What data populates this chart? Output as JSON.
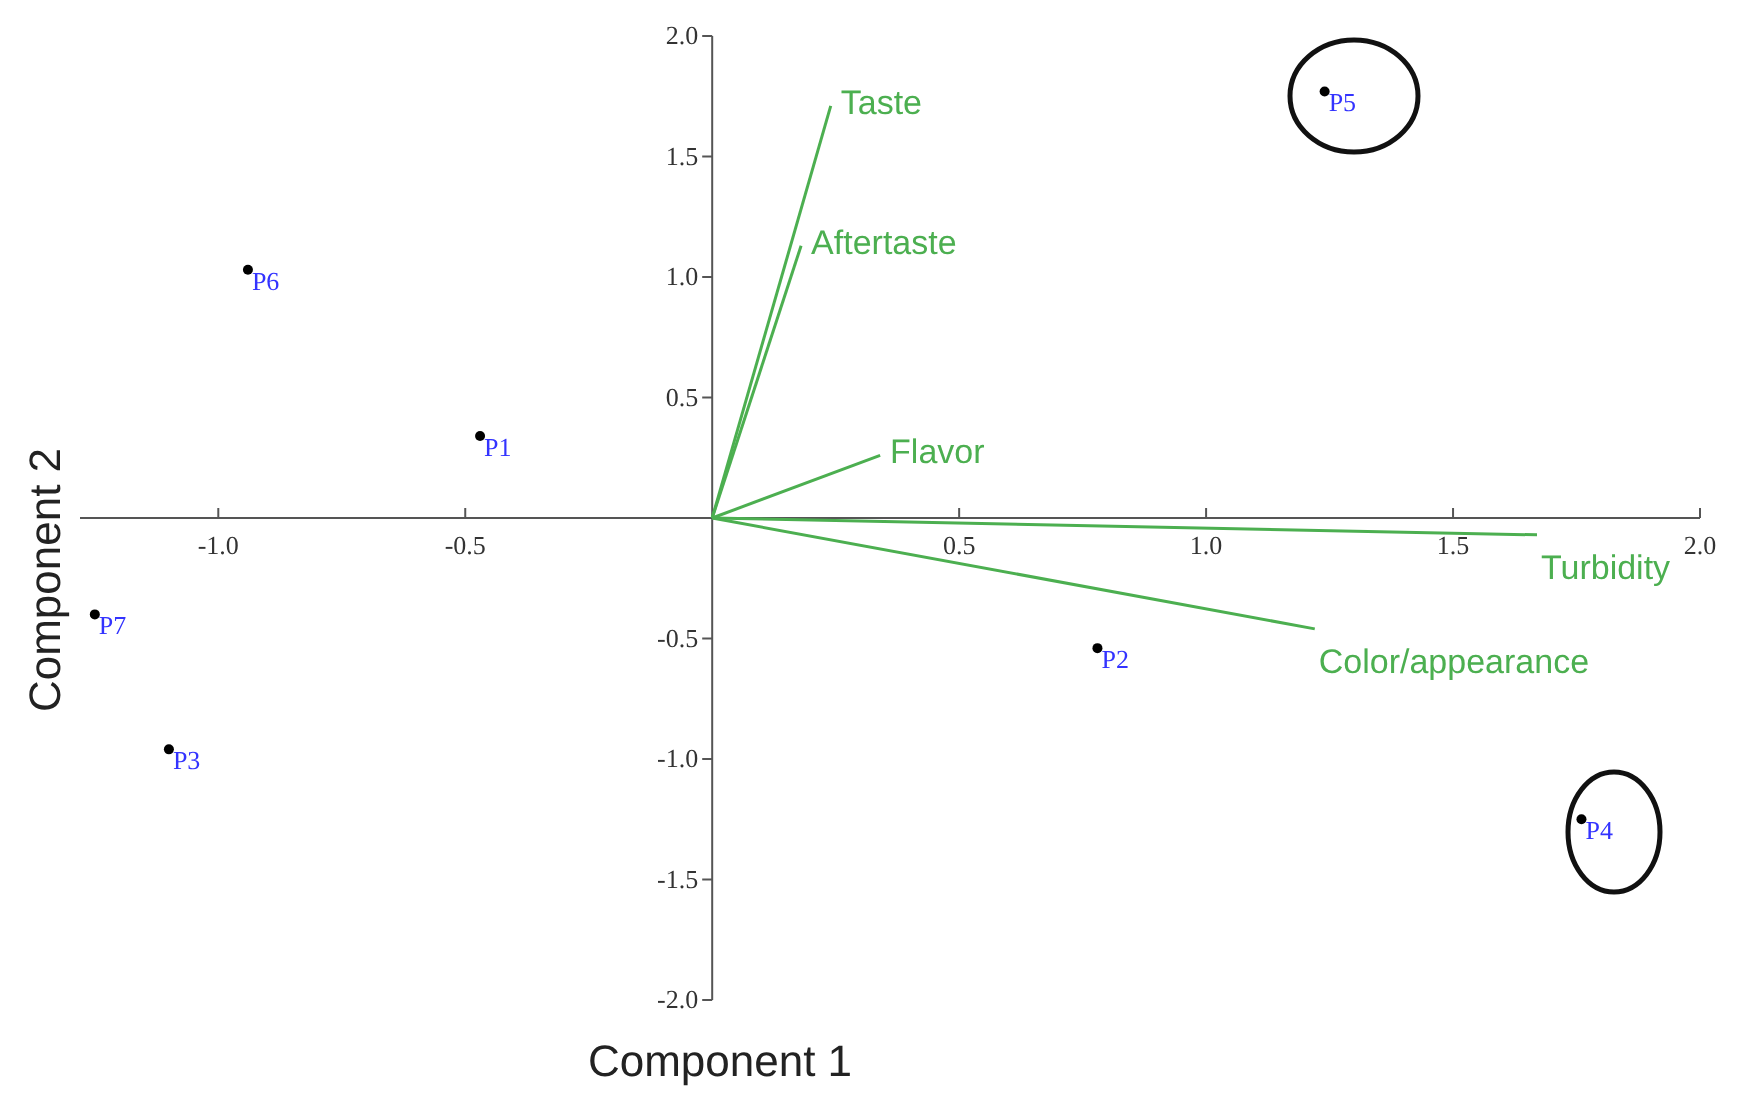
{
  "chart_data": {
    "type": "scatter",
    "xlabel": "Component 1",
    "ylabel": "Component 2",
    "xlim": [
      -1.28,
      2.0
    ],
    "ylim": [
      -2.0,
      2.0
    ],
    "xticks": [
      {
        "value": -1.0,
        "label": "-1.0"
      },
      -0.5,
      0.5,
      {
        "value": 1.0,
        "label": "1.0"
      },
      1.5,
      {
        "value": 2.0,
        "label": "2.0"
      }
    ],
    "yticks": [
      {
        "value": -2.0,
        "label": "-2.0"
      },
      -1.5,
      {
        "value": -1.0,
        "label": "-1.0"
      },
      -0.5,
      0.5,
      {
        "value": 1.0,
        "label": "1.0"
      },
      1.5,
      {
        "value": 2.0,
        "label": "2.0"
      }
    ],
    "grid": false,
    "marker": "circle",
    "series": [
      {
        "name": "P1",
        "color": "#000000",
        "x": [
          -0.47
        ],
        "values": [
          0.34
        ]
      },
      {
        "name": "P2",
        "color": "#000000",
        "x": [
          0.78
        ],
        "values": [
          -0.54
        ]
      },
      {
        "name": "P3",
        "color": "#000000",
        "x": [
          -1.1
        ],
        "values": [
          -0.96
        ]
      },
      {
        "name": "P4",
        "color": "#000000",
        "x": [
          1.76
        ],
        "values": [
          -1.25
        ]
      },
      {
        "name": "P5",
        "color": "#000000",
        "x": [
          1.24
        ],
        "values": [
          1.77
        ]
      },
      {
        "name": "P6",
        "color": "#000000",
        "x": [
          -0.94
        ],
        "values": [
          1.03
        ]
      },
      {
        "name": "P7",
        "color": "#000000",
        "x": [
          -1.25
        ],
        "values": [
          -0.4
        ]
      },
      {
        "name": "Taste",
        "type": "line",
        "marker": "none",
        "color": "#4caf50",
        "x": [
          0,
          0.24
        ],
        "values": [
          0,
          1.71
        ]
      },
      {
        "name": "Aftertaste",
        "type": "line",
        "marker": "none",
        "color": "#4caf50",
        "x": [
          0,
          0.18
        ],
        "values": [
          0,
          1.13
        ]
      },
      {
        "name": "Flavor",
        "type": "line",
        "marker": "none",
        "color": "#4caf50",
        "x": [
          0,
          0.34
        ],
        "values": [
          0,
          0.26
        ]
      },
      {
        "name": "Turbidity",
        "type": "line",
        "marker": "none",
        "color": "#4caf50",
        "x": [
          0,
          1.67
        ],
        "values": [
          0,
          -0.07
        ]
      },
      {
        "name": "Color/appearance",
        "type": "line",
        "marker": "none",
        "color": "#4caf50",
        "x": [
          0,
          1.22
        ],
        "values": [
          0,
          -0.46
        ]
      }
    ]
  }
}
